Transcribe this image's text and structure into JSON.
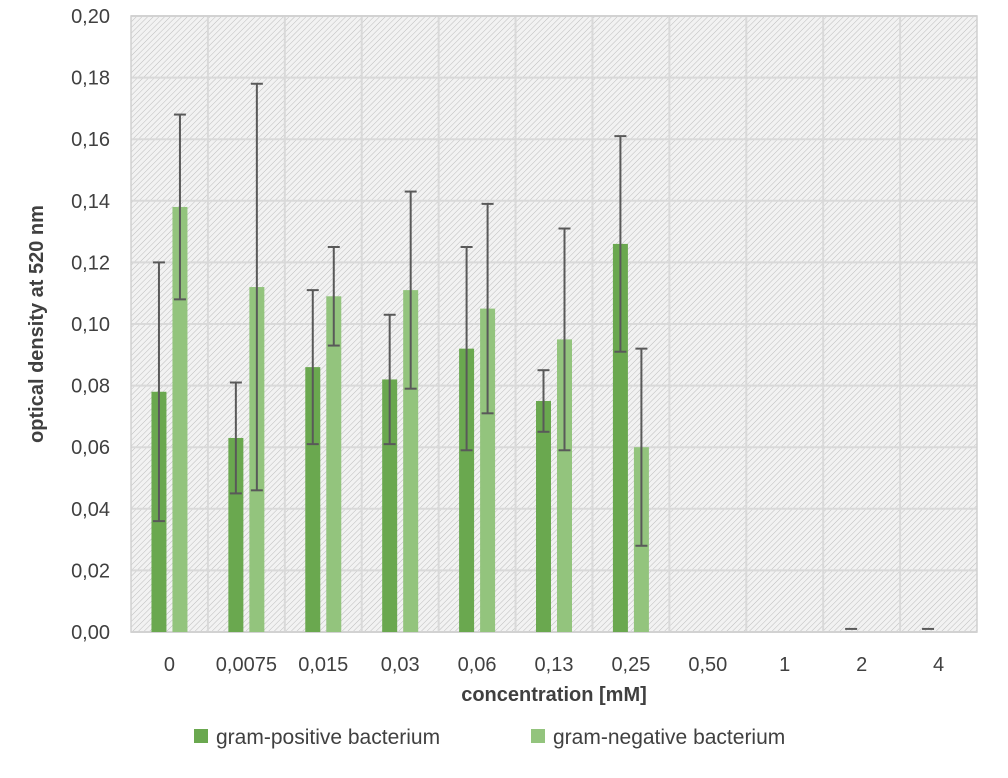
{
  "chart_data": {
    "type": "bar",
    "title": "",
    "xlabel": "concentration [mM]",
    "ylabel": "optical density at 520 nm",
    "categories": [
      "0",
      "0,0075",
      "0,015",
      "0,03",
      "0,06",
      "0,13",
      "0,25",
      "0,50",
      "1",
      "2",
      "4"
    ],
    "ylim": [
      0,
      0.2
    ],
    "yticks": [
      0,
      0.02,
      0.04,
      0.06,
      0.08,
      0.1,
      0.12,
      0.14,
      0.16,
      0.18,
      0.2
    ],
    "ytick_labels": [
      "0,00",
      "0,02",
      "0,04",
      "0,06",
      "0,08",
      "0,10",
      "0,12",
      "0,14",
      "0,16",
      "0,18",
      "0,20"
    ],
    "grid": true,
    "legend_position": "bottom",
    "series": [
      {
        "name": "gram-positive bacterium",
        "color": "#6aa84f",
        "values": [
          0.078,
          0.063,
          0.086,
          0.082,
          0.092,
          0.075,
          0.126,
          0,
          0,
          0.001,
          0.001
        ],
        "errors": [
          0.042,
          0.018,
          0.025,
          0.021,
          0.033,
          0.01,
          0.035,
          0,
          0,
          0,
          0
        ]
      },
      {
        "name": "gram-negative bacterium",
        "color": "#93c47d",
        "values": [
          0.138,
          0.112,
          0.109,
          0.111,
          0.105,
          0.095,
          0.06,
          0,
          0,
          0,
          0
        ],
        "errors": [
          0.03,
          0.066,
          0.016,
          0.032,
          0.034,
          0.036,
          0.032,
          0,
          0,
          0,
          0
        ]
      }
    ]
  }
}
